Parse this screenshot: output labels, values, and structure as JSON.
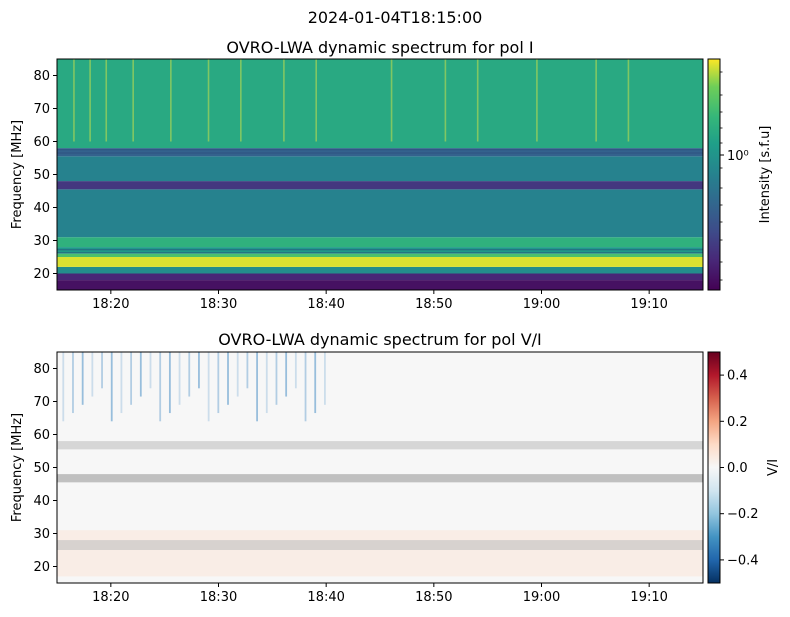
{
  "figure": {
    "suptitle": "2024-01-04T18:15:00"
  },
  "chart_data": [
    {
      "type": "heatmap",
      "title": "OVRO-LWA dynamic spectrum for pol I",
      "xlabel": "",
      "ylabel": "Frequency [MHz]",
      "x_ticks": [
        "18:20",
        "18:30",
        "18:40",
        "18:50",
        "19:00",
        "19:10"
      ],
      "x_tick_minutes_after_18_15": [
        5,
        15,
        25,
        35,
        45,
        55
      ],
      "xlim_minutes_after_18_15": [
        0,
        60
      ],
      "y_ticks": [
        20,
        30,
        40,
        50,
        60,
        70,
        80
      ],
      "ylim": [
        15,
        85
      ],
      "colormap": "viridis",
      "colorbar": {
        "label": "Intensity [s.f.u]",
        "scale": "log",
        "major_tick_label": "10⁰"
      },
      "bands": [
        {
          "from": 15,
          "to": 18,
          "level": 0.05
        },
        {
          "from": 18,
          "to": 20,
          "level": 0.12
        },
        {
          "from": 20,
          "to": 22,
          "level": 0.55
        },
        {
          "from": 22,
          "to": 25,
          "level": 0.97
        },
        {
          "from": 25,
          "to": 26,
          "level": 0.8
        },
        {
          "from": 26,
          "to": 28,
          "level": 0.6
        },
        {
          "from": 28,
          "to": 31,
          "level": 0.72
        },
        {
          "from": 31,
          "to": 45.5,
          "level": 0.5
        },
        {
          "from": 45.5,
          "to": 48,
          "level": 0.18
        },
        {
          "from": 48,
          "to": 55.5,
          "level": 0.5
        },
        {
          "from": 55.5,
          "to": 58,
          "level": 0.35
        },
        {
          "from": 58,
          "to": 85,
          "level": 0.68
        }
      ],
      "bursts_minutes_after_18_15": [
        1.5,
        3,
        4.5,
        7,
        10.5,
        14,
        17,
        21,
        24,
        31,
        36,
        39,
        44.5,
        50,
        53
      ]
    },
    {
      "type": "heatmap",
      "title": "OVRO-LWA dynamic spectrum for pol V/I",
      "xlabel": "",
      "ylabel": "Frequency [MHz]",
      "x_ticks": [
        "18:20",
        "18:30",
        "18:40",
        "18:50",
        "19:00",
        "19:10"
      ],
      "x_tick_minutes_after_18_15": [
        5,
        15,
        25,
        35,
        45,
        55
      ],
      "xlim_minutes_after_18_15": [
        0,
        60
      ],
      "y_ticks": [
        20,
        30,
        40,
        50,
        60,
        70,
        80
      ],
      "ylim": [
        15,
        85
      ],
      "colormap": "RdBu_r",
      "colorbar": {
        "label": "V/I",
        "scale": "linear",
        "range": [
          -0.5,
          0.5
        ],
        "ticks": [
          0.4,
          0.2,
          0.0,
          -0.2,
          -0.4
        ],
        "tick_labels": [
          "0.4",
          "0.2",
          "0.0",
          "−0.2",
          "−0.4"
        ]
      },
      "masked_bands": [
        {
          "from": 45.5,
          "to": 48
        },
        {
          "from": 55.5,
          "to": 58
        },
        {
          "from": 25,
          "to": 28
        }
      ]
    }
  ]
}
